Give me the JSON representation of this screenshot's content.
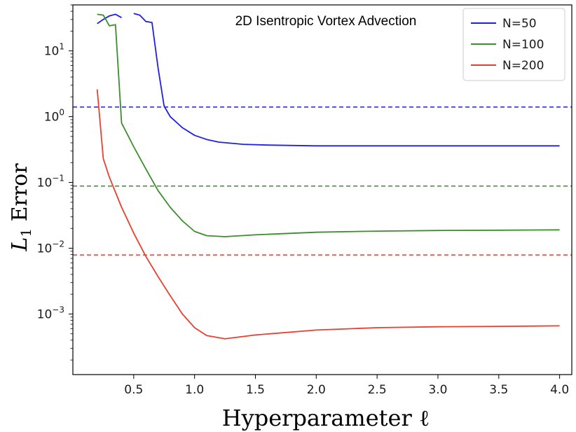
{
  "chart_data": {
    "type": "line",
    "title": "2D Isentropic Vortex Advection",
    "xlabel": "Hyperparameter  ℓ",
    "ylabel": "L1 Error",
    "ylabel_main": "L",
    "ylabel_sub": "1",
    "ylabel_rest": " Error",
    "yscale": "log",
    "xlim": [
      0.0,
      4.1
    ],
    "ylim": [
      0.00012,
      50
    ],
    "grid": false,
    "legend_position": "top-right",
    "x_ticks": [
      {
        "value": 0.5,
        "label": "0.5"
      },
      {
        "value": 1.0,
        "label": "1.0"
      },
      {
        "value": 1.5,
        "label": "1.5"
      },
      {
        "value": 2.0,
        "label": "2.0"
      },
      {
        "value": 2.5,
        "label": "2.5"
      },
      {
        "value": 3.0,
        "label": "3.0"
      },
      {
        "value": 3.5,
        "label": "3.5"
      },
      {
        "value": 4.0,
        "label": "4.0"
      }
    ],
    "y_ticks": [
      {
        "value": 10,
        "base": "10",
        "exp": "1"
      },
      {
        "value": 1,
        "base": "10",
        "exp": "0"
      },
      {
        "value": 0.1,
        "base": "10",
        "exp": "−1"
      },
      {
        "value": 0.01,
        "base": "10",
        "exp": "−2"
      },
      {
        "value": 0.001,
        "base": "10",
        "exp": "−3"
      }
    ],
    "series": [
      {
        "name": "N=50",
        "color": "#1f1fe6",
        "segments": [
          [
            [
              0.2,
              26
            ],
            [
              0.25,
              30
            ],
            [
              0.3,
              34
            ],
            [
              0.35,
              36
            ],
            [
              0.4,
              32
            ]
          ],
          [
            [
              0.5,
              37
            ],
            [
              0.55,
              35
            ],
            [
              0.6,
              28
            ],
            [
              0.65,
              27
            ],
            [
              0.7,
              5.5
            ],
            [
              0.75,
              1.45
            ],
            [
              0.8,
              1.0
            ],
            [
              0.9,
              0.68
            ],
            [
              1.0,
              0.52
            ],
            [
              1.1,
              0.45
            ],
            [
              1.2,
              0.41
            ],
            [
              1.4,
              0.38
            ],
            [
              1.6,
              0.37
            ],
            [
              2.0,
              0.36
            ],
            [
              2.5,
              0.36
            ],
            [
              3.0,
              0.36
            ],
            [
              3.5,
              0.36
            ],
            [
              4.0,
              0.36
            ]
          ]
        ]
      },
      {
        "name": "N=100",
        "color": "#3a8f2a",
        "segments": [
          [
            [
              0.2,
              36
            ],
            [
              0.25,
              35
            ],
            [
              0.3,
              24
            ],
            [
              0.35,
              25
            ],
            [
              0.4,
              0.8
            ],
            [
              0.5,
              0.35
            ],
            [
              0.6,
              0.16
            ],
            [
              0.7,
              0.075
            ],
            [
              0.8,
              0.042
            ],
            [
              0.9,
              0.026
            ],
            [
              1.0,
              0.018
            ],
            [
              1.1,
              0.0155
            ],
            [
              1.25,
              0.015
            ],
            [
              1.5,
              0.016
            ],
            [
              2.0,
              0.0175
            ],
            [
              2.5,
              0.0182
            ],
            [
              3.0,
              0.0186
            ],
            [
              3.5,
              0.0188
            ],
            [
              4.0,
              0.019
            ]
          ]
        ]
      },
      {
        "name": "N=200",
        "color": "#e8402e",
        "segments": [
          [
            [
              0.2,
              2.6
            ],
            [
              0.25,
              0.23
            ],
            [
              0.3,
              0.12
            ],
            [
              0.4,
              0.042
            ],
            [
              0.5,
              0.017
            ],
            [
              0.6,
              0.0075
            ],
            [
              0.7,
              0.0037
            ],
            [
              0.8,
              0.0019
            ],
            [
              0.9,
              0.001
            ],
            [
              1.0,
              0.00062
            ],
            [
              1.1,
              0.00047
            ],
            [
              1.25,
              0.00042
            ],
            [
              1.5,
              0.00048
            ],
            [
              2.0,
              0.00057
            ],
            [
              2.5,
              0.00062
            ],
            [
              3.0,
              0.00064
            ],
            [
              3.5,
              0.00065
            ],
            [
              4.0,
              0.00066
            ]
          ]
        ]
      }
    ],
    "reference_lines": [
      {
        "color": "#1f1fe6",
        "y": 1.4
      },
      {
        "color": "#3a8f2a",
        "y": 0.088
      },
      {
        "color": "#e8402e",
        "y": 0.0079
      }
    ]
  }
}
